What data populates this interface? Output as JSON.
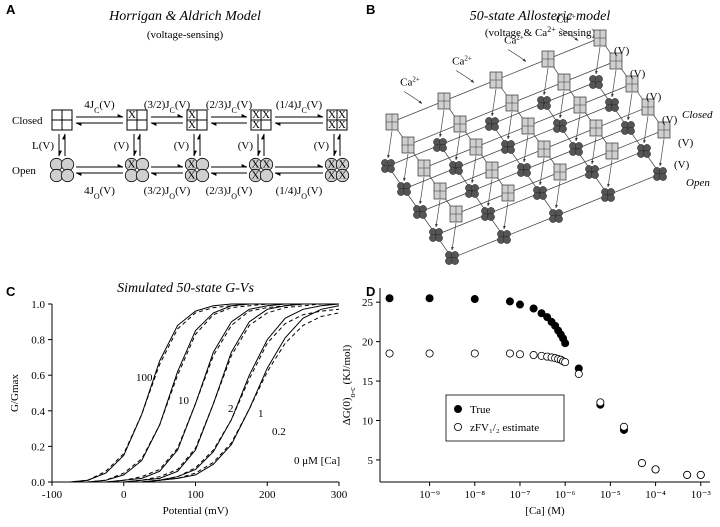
{
  "A": {
    "label": "A",
    "title": "Horrigan & Aldrich Model",
    "subtitle": "(voltage-sensing)",
    "closed": "Closed",
    "open": "Open",
    "x_mark": "X",
    "top_rates": [
      {
        "pre": "4J",
        "sub": "C",
        "post": "(V)"
      },
      {
        "pre": "(3/2)J",
        "sub": "C",
        "post": "(V)"
      },
      {
        "pre": "(2/3)J",
        "sub": "C",
        "post": "(V)"
      },
      {
        "pre": "(1/4)J",
        "sub": "C",
        "post": "(V)"
      }
    ],
    "bottom_rates": [
      {
        "pre": "4J",
        "sub": "O",
        "post": "(V)"
      },
      {
        "pre": "(3/2)J",
        "sub": "O",
        "post": "(V)"
      },
      {
        "pre": "(2/3)J",
        "sub": "O",
        "post": "(V)"
      },
      {
        "pre": "(1/4)J",
        "sub": "O",
        "post": "(V)"
      }
    ],
    "vertical_rates": [
      "L(V)",
      "(V)",
      "(V)",
      "(V)",
      "(V)"
    ]
  },
  "B": {
    "label": "B",
    "title": "50-state Allosteric model",
    "subtitle": {
      "pre": "(voltage & Ca",
      "sup": "2+",
      "post": " sensing)"
    },
    "ca_labels": [
      {
        "text": "Ca",
        "sup": "2+"
      },
      {
        "text": "Ca",
        "sup": "2+"
      },
      {
        "text": "Ca",
        "sup": "2+"
      },
      {
        "text": "Ca",
        "sup": "2+"
      }
    ],
    "v_labels": [
      "(V)",
      "(V)",
      "(V)",
      "(V)",
      "(V)",
      "(V)"
    ],
    "closed": "Closed",
    "open": "Open"
  },
  "chart_data": [
    {
      "type": "line",
      "panel": "C",
      "title": "Simulated 50-state G-Vs",
      "xlabel": "Potential (mV)",
      "ylabel": "G/Gmax",
      "x": [
        -100,
        -75,
        -50,
        -25,
        0,
        25,
        50,
        75,
        100,
        125,
        150,
        175,
        200,
        225,
        250,
        275,
        300
      ],
      "xlim": [
        -100,
        300
      ],
      "xticks": [
        -100,
        0,
        100,
        200,
        300
      ],
      "ylim": [
        0,
        1
      ],
      "yticks": [
        {
          "value": 0,
          "label": "0.0"
        },
        0.2,
        0.4,
        0.6,
        0.8,
        {
          "value": 1,
          "label": "1.0"
        }
      ],
      "series": [
        {
          "name": "100",
          "color": "#000000",
          "values": [
            0,
            0,
            0.01,
            0.05,
            0.15,
            0.38,
            0.68,
            0.88,
            0.96,
            0.99,
            1,
            1,
            1,
            1,
            1,
            1,
            1
          ],
          "fit_values": [
            0,
            0,
            0.01,
            0.06,
            0.16,
            0.38,
            0.66,
            0.86,
            0.95,
            0.98,
            0.99,
            1,
            1,
            1,
            1,
            1,
            1
          ]
        },
        {
          "name": "10",
          "color": "#000000",
          "values": [
            0,
            0,
            0,
            0.01,
            0.04,
            0.12,
            0.32,
            0.62,
            0.85,
            0.95,
            0.99,
            1,
            1,
            1,
            1,
            1,
            1
          ],
          "fit_values": [
            0,
            0,
            0,
            0.01,
            0.05,
            0.13,
            0.32,
            0.6,
            0.83,
            0.94,
            0.98,
            0.99,
            1,
            1,
            1,
            1,
            1
          ]
        },
        {
          "name": "2",
          "color": "#000000",
          "values": [
            0,
            0,
            0,
            0,
            0.01,
            0.02,
            0.06,
            0.18,
            0.44,
            0.73,
            0.9,
            0.97,
            0.99,
            1,
            1,
            1,
            1
          ],
          "fit_values": [
            0,
            0,
            0,
            0,
            0.01,
            0.03,
            0.07,
            0.19,
            0.44,
            0.71,
            0.88,
            0.96,
            0.98,
            0.99,
            1,
            1,
            1
          ]
        },
        {
          "name": "1",
          "color": "#000000",
          "values": [
            0,
            0,
            0,
            0,
            0,
            0.01,
            0.02,
            0.06,
            0.18,
            0.44,
            0.73,
            0.9,
            0.97,
            0.99,
            1,
            1,
            1
          ],
          "fit_values": [
            0,
            0,
            0,
            0,
            0,
            0.01,
            0.03,
            0.07,
            0.19,
            0.44,
            0.71,
            0.88,
            0.95,
            0.98,
            0.99,
            1,
            1
          ]
        },
        {
          "name": "0.2",
          "color": "#000000",
          "values": [
            0,
            0,
            0,
            0,
            0,
            0,
            0.01,
            0.03,
            0.07,
            0.17,
            0.35,
            0.6,
            0.8,
            0.92,
            0.97,
            0.99,
            1
          ],
          "fit_values": [
            0,
            0,
            0,
            0,
            0,
            0,
            0.01,
            0.03,
            0.08,
            0.18,
            0.35,
            0.58,
            0.78,
            0.89,
            0.94,
            0.96,
            0.97
          ]
        },
        {
          "name": "0 μM [Ca]",
          "color": "#000000",
          "values": [
            0,
            0,
            0,
            0,
            0,
            0,
            0.01,
            0.02,
            0.04,
            0.1,
            0.21,
            0.41,
            0.64,
            0.81,
            0.92,
            0.97,
            0.99
          ],
          "fit_values": [
            0,
            0,
            0,
            0,
            0,
            0,
            0.01,
            0.02,
            0.05,
            0.11,
            0.22,
            0.41,
            0.62,
            0.78,
            0.88,
            0.93,
            0.95
          ]
        }
      ]
    },
    {
      "type": "scatter",
      "panel": "D",
      "xlabel": "[Ca] (M)",
      "ylabel": {
        "pre": "ΔG(0)",
        "sub": "o-c",
        "post": " (KJ/mol)"
      },
      "xscale": "log",
      "xlim": [
        8e-11,
        0.0016
      ],
      "xticks": [
        {
          "value": 1e-09,
          "label": "10⁻⁹"
        },
        {
          "value": 1e-08,
          "label": "10⁻⁸"
        },
        {
          "value": 1e-07,
          "label": "10⁻⁷"
        },
        {
          "value": 1e-06,
          "label": "10⁻⁶"
        },
        {
          "value": 1e-05,
          "label": "10⁻⁵"
        },
        {
          "value": 0.0001,
          "label": "10⁻⁴"
        },
        {
          "value": 0.001,
          "label": "10⁻³"
        }
      ],
      "ylim": [
        2.2,
        26.8
      ],
      "yticks": [
        5,
        10,
        15,
        20,
        25
      ],
      "legend": "lower left",
      "x": [
        1.3e-10,
        1e-09,
        1e-08,
        6e-08,
        1e-07,
        2e-07,
        3e-07,
        4e-07,
        5e-07,
        6e-07,
        7e-07,
        8e-07,
        9e-07,
        1e-06,
        2e-06,
        6e-06,
        2e-05,
        5e-05,
        0.0001,
        0.0005,
        0.001
      ],
      "series": [
        {
          "name": "True",
          "color": "#000000",
          "filled": true,
          "values": [
            25.5,
            25.5,
            25.4,
            25.1,
            24.7,
            24.2,
            23.6,
            23.1,
            22.5,
            22.0,
            21.4,
            20.9,
            20.4,
            19.8,
            16.6,
            12.0,
            8.8,
            4.6,
            3.8,
            3.1,
            3.1
          ]
        },
        {
          "name": "zFV₁/₂ estimate",
          "color": "#000000",
          "filled": false,
          "values": [
            18.5,
            18.5,
            18.5,
            18.5,
            18.4,
            18.3,
            18.2,
            18.1,
            18.0,
            17.9,
            17.8,
            17.7,
            17.5,
            17.4,
            15.9,
            12.3,
            9.2,
            4.6,
            3.8,
            3.1,
            3.1
          ]
        }
      ]
    }
  ]
}
